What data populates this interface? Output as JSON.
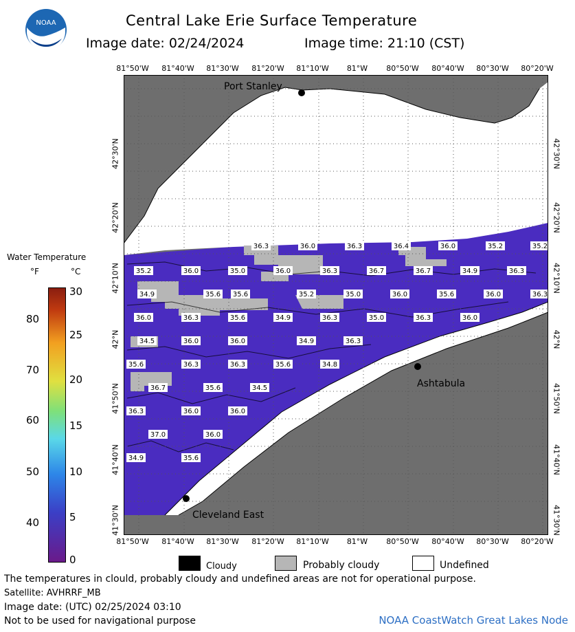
{
  "header": {
    "title": "Central Lake Erie Surface Temperature",
    "image_date": "Image date: 02/24/2024",
    "image_time": "Image time: 21:10 (CST)"
  },
  "map": {
    "lon_ticks": [
      "81°50'W",
      "81°40'W",
      "81°30'W",
      "81°20'W",
      "81°10'W",
      "81°W",
      "80°50'W",
      "80°40'W",
      "80°30'W",
      "80°20'W"
    ],
    "lat_ticks": [
      "42°30'N",
      "42°20'N",
      "42°10'N",
      "42°N",
      "41°50'N",
      "41°40'N",
      "41°30'N"
    ],
    "places": {
      "north": "Port Stanley",
      "east": "Ashtabula",
      "south": "Cleveland East"
    },
    "temps": [
      "36.3",
      "36.0",
      "36.3",
      "36.4",
      "36.0",
      "35.2",
      "35.2",
      "35.2",
      "36.0",
      "35.0",
      "36.0",
      "36.3",
      "36.7",
      "36.7",
      "34.9",
      "36.3",
      "34.9",
      "35.6",
      "35.6",
      "35.2",
      "35.0",
      "36.0",
      "35.6",
      "36.0",
      "36.3",
      "36.0",
      "36.3",
      "35.6",
      "34.9",
      "36.3",
      "35.0",
      "36.3",
      "36.0",
      "34.5",
      "36.0",
      "36.0",
      "34.9",
      "36.3",
      "35.6",
      "36.3",
      "36.3",
      "35.6",
      "34.8",
      "36.7",
      "35.6",
      "34.5",
      "36.3",
      "36.0",
      "36.0",
      "37.0",
      "36.0",
      "34.9",
      "35.6"
    ]
  },
  "legend": {
    "title": "Water Temperature",
    "unit_f": "°F",
    "unit_c": "°C",
    "f_ticks": [
      "80",
      "70",
      "60",
      "50",
      "40"
    ],
    "c_ticks": [
      "30",
      "25",
      "20",
      "15",
      "10",
      "5",
      "0"
    ],
    "cloudy": "Cloudy",
    "probably_cloudy": "Probably cloudy",
    "undefined": "Undefined"
  },
  "footer": {
    "disclaimer": "The temperatures in clould, probably cloudy and undefined areas are not for operational purpose.",
    "satellite": "Satellite: AVHRRF_MB",
    "utc_date": "Image date: (UTC) 02/25/2024  03:10",
    "nav": "Not to be used for navigational purpose",
    "credit": "NOAA CoastWatch Great Lakes Node"
  },
  "colors": {
    "land": "#6e6e6e",
    "water": "#4a2cc0",
    "cloud": "#b6b6b6",
    "grid": "#555555"
  }
}
